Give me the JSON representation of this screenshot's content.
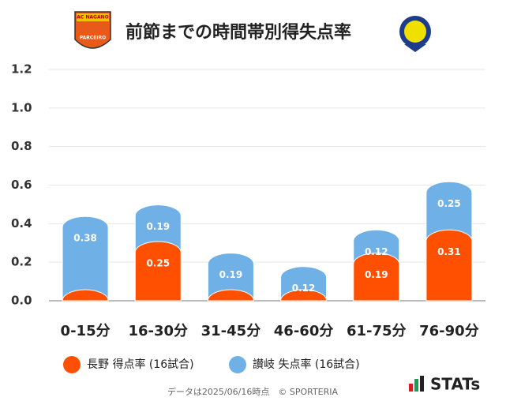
{
  "chart_data": {
    "type": "stacked-bar",
    "title": "前節までの時間帯別得失点率",
    "categories": [
      "0-15分",
      "16-30分",
      "31-45分",
      "46-60分",
      "61-75分",
      "76-90分"
    ],
    "series": [
      {
        "name": "長野 得点率 (16試合)",
        "color": "#fe5000",
        "values": [
          0,
          0.25,
          0,
          0,
          0.19,
          0.31
        ]
      },
      {
        "name": "讃岐 失点率 (16試合)",
        "color": "#6fb0e6",
        "values": [
          0.38,
          0.19,
          0.19,
          0.12,
          0.12,
          0.25
        ]
      }
    ],
    "ylim": [
      0,
      1.2
    ],
    "yticks": [
      {
        "value": 0,
        "label": "0.0"
      },
      0.2,
      0.4,
      0.6,
      0.8,
      {
        "value": 1,
        "label": "1.0"
      },
      1.2
    ],
    "grid": true,
    "footer": "データは2025/06/16時点　© SPORTERIA",
    "brand": "STATs",
    "logo_left": [
      "AC NAGANO",
      "PARCEIRO"
    ]
  }
}
